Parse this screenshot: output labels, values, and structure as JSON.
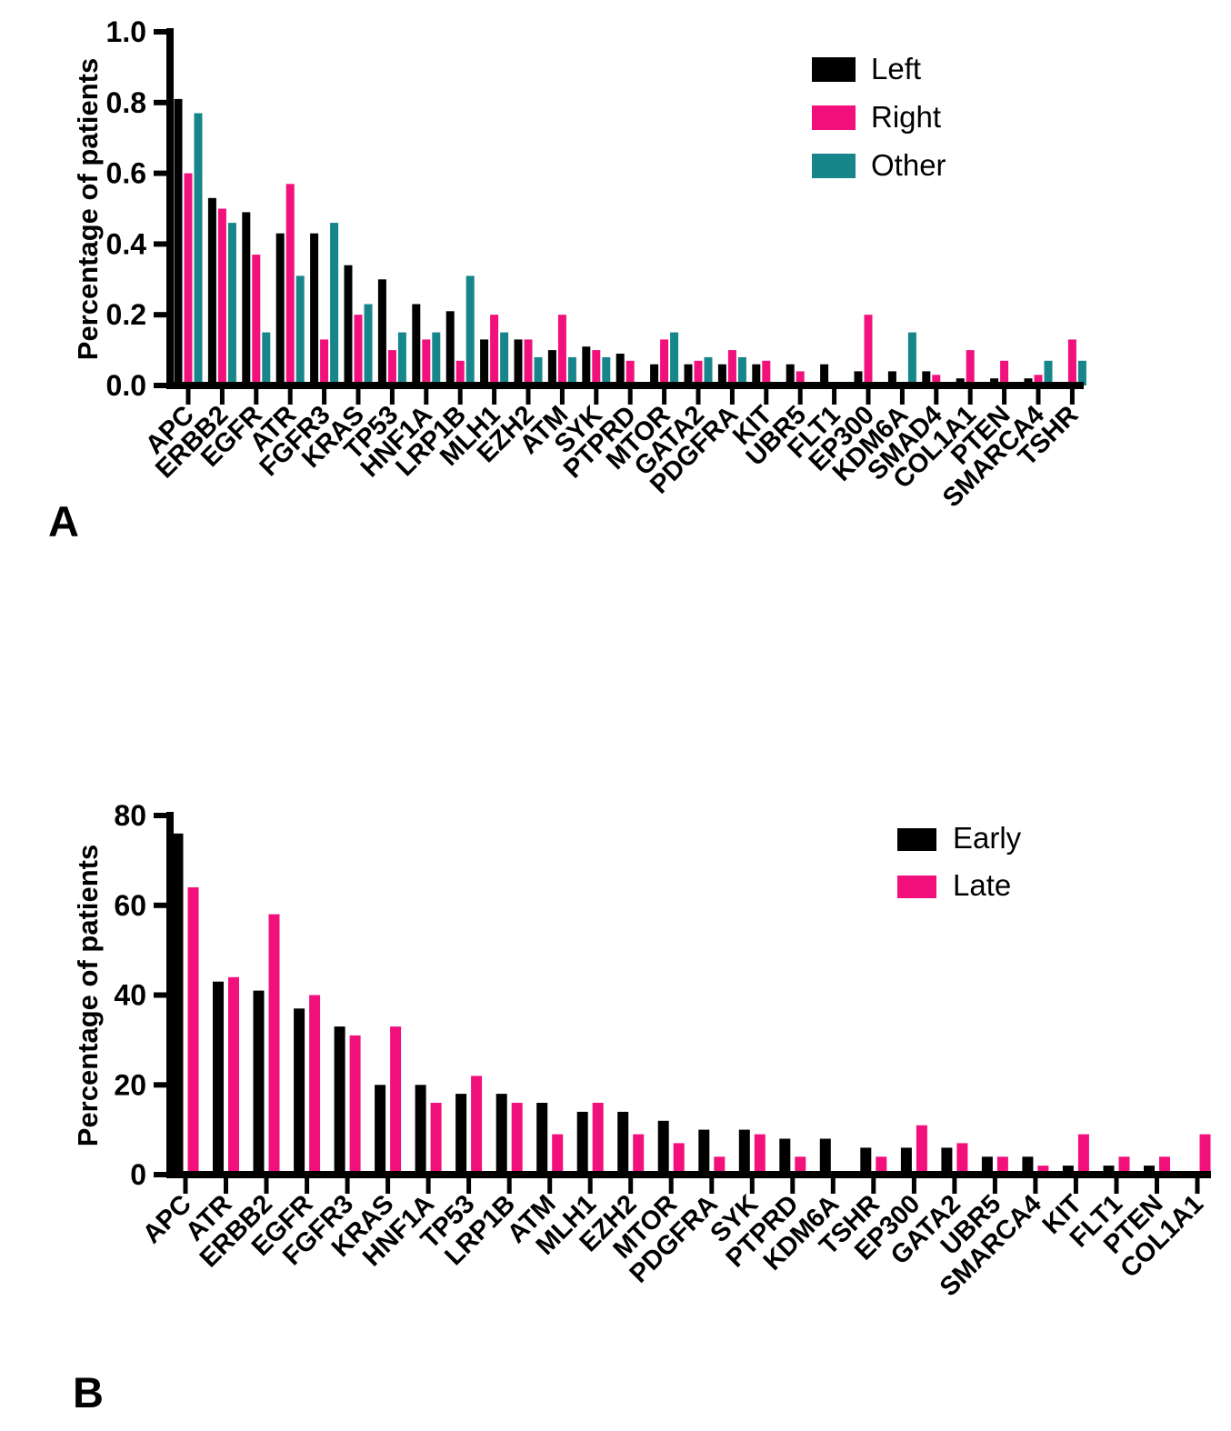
{
  "figure": {
    "panels": [
      {
        "panel_label": "A",
        "y_axis_title": "Percentage of patients",
        "legend": {
          "position": "top-right",
          "entries": [
            {
              "label": "Left",
              "color": "#000000"
            },
            {
              "label": "Right",
              "color": "#F2107C"
            },
            {
              "label": "Other",
              "color": "#17868B"
            }
          ]
        },
        "chart_data": {
          "type": "bar",
          "title": "",
          "xlabel": "",
          "ylabel": "Percentage of patients",
          "ylim": [
            0,
            1.0
          ],
          "ytick_labels": [
            "0.0",
            "0.2",
            "0.4",
            "0.6",
            "0.8",
            "1.0"
          ],
          "grid": false,
          "categories": [
            "APC",
            "ERBB2",
            "EGFR",
            "ATR",
            "FGFR3",
            "KRAS",
            "TP53",
            "HNF1A",
            "LRP1B",
            "MLH1",
            "EZH2",
            "ATM",
            "SYK",
            "PTPRD",
            "MTOR",
            "GATA2",
            "PDGFRA",
            "KIT",
            "UBR5",
            "FLT1",
            "EP300",
            "KDM6A",
            "SMAD4",
            "COL1A1",
            "PTEN",
            "SMARCA4",
            "TSHR"
          ],
          "series": [
            {
              "name": "Left",
              "color": "#000000",
              "values": [
                0.81,
                0.53,
                0.49,
                0.43,
                0.43,
                0.34,
                0.3,
                0.23,
                0.21,
                0.13,
                0.13,
                0.1,
                0.11,
                0.09,
                0.06,
                0.06,
                0.06,
                0.06,
                0.06,
                0.06,
                0.04,
                0.04,
                0.04,
                0.02,
                0.02,
                0.02,
                0
              ]
            },
            {
              "name": "Right",
              "color": "#F2107C",
              "values": [
                0.6,
                0.5,
                0.37,
                0.57,
                0.13,
                0.2,
                0.1,
                0.13,
                0.07,
                0.2,
                0.13,
                0.2,
                0.1,
                0.07,
                0.13,
                0.07,
                0.1,
                0.07,
                0.04,
                0,
                0.2,
                0,
                0.03,
                0.1,
                0.07,
                0.03,
                0.13
              ]
            },
            {
              "name": "Other",
              "color": "#17868B",
              "values": [
                0.77,
                0.46,
                0.15,
                0.31,
                0.46,
                0.23,
                0.15,
                0.15,
                0.31,
                0.15,
                0.08,
                0.08,
                0.08,
                0,
                0.15,
                0.08,
                0.08,
                0,
                0,
                0,
                0,
                0.15,
                0,
                0,
                0,
                0.07,
                0.07
              ]
            }
          ]
        }
      },
      {
        "panel_label": "B",
        "y_axis_title": "Percentage of patients",
        "legend": {
          "position": "top-right",
          "entries": [
            {
              "label": "Early",
              "color": "#000000"
            },
            {
              "label": "Late",
              "color": "#F2107C"
            }
          ]
        },
        "chart_data": {
          "type": "bar",
          "title": "",
          "xlabel": "",
          "ylabel": "Percentage of patients",
          "ylim": [
            0,
            80
          ],
          "ytick_labels": [
            "0",
            "20",
            "40",
            "60",
            "80"
          ],
          "grid": false,
          "categories": [
            "APC",
            "ATR",
            "ERBB2",
            "EGFR",
            "FGFR3",
            "KRAS",
            "HNF1A",
            "TP53",
            "LRP1B",
            "ATM",
            "MLH1",
            "EZH2",
            "MTOR",
            "PDGFRA",
            "SYK",
            "PTPRD",
            "KDM6A",
            "TSHR",
            "EP300",
            "GATA2",
            "UBR5",
            "SMARCA4",
            "KIT",
            "FLT1",
            "PTEN",
            "COL1A1"
          ],
          "series": [
            {
              "name": "Early",
              "color": "#000000",
              "values": [
                76,
                43,
                41,
                37,
                33,
                20,
                20,
                18,
                18,
                16,
                14,
                14,
                12,
                10,
                10,
                8,
                8,
                6,
                6,
                6,
                4,
                4,
                2,
                2,
                2,
                0
              ]
            },
            {
              "name": "Late",
              "color": "#F2107C",
              "values": [
                64,
                44,
                58,
                40,
                31,
                33,
                16,
                22,
                16,
                9,
                16,
                9,
                7,
                4,
                9,
                4,
                0,
                4,
                11,
                7,
                4,
                2,
                9,
                4,
                4,
                9
              ]
            }
          ]
        }
      }
    ]
  }
}
